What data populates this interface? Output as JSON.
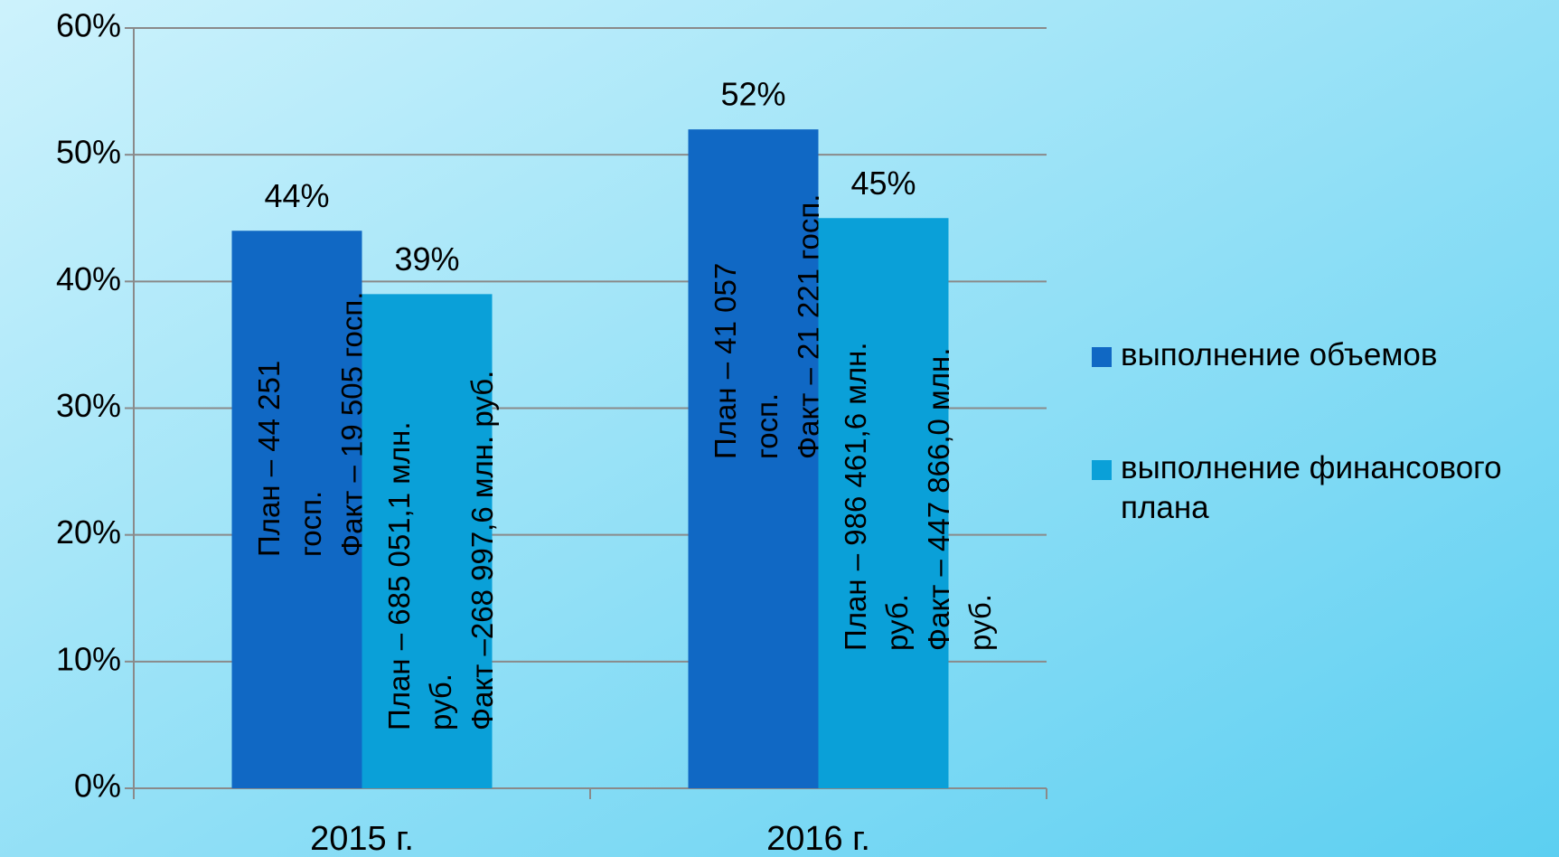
{
  "chart_data": {
    "type": "bar",
    "categories": [
      "2015 г.",
      "2016 г."
    ],
    "series": [
      {
        "name": "выполнение объемов",
        "color": "#1068c4",
        "values": [
          44,
          52
        ],
        "value_labels": [
          "44%",
          "52%"
        ],
        "notes": [
          [
            "План – 44 251",
            "госп.",
            "Факт – 19 505 госп."
          ],
          [
            "План – 41 057",
            "госп.",
            "Факт – 21 221 госп."
          ]
        ]
      },
      {
        "name": "выполнение финансового плана",
        "color": "#0aa0d8",
        "values": [
          39,
          45
        ],
        "value_labels": [
          "39%",
          "45%"
        ],
        "notes": [
          [
            "План – 685 051,1 млн.",
            "руб.",
            "Факт –268 997,6 млн. руб."
          ],
          [
            "План – 986 461,6 млн.",
            "руб.",
            "Факт – 447 866,0 млн.",
            "руб."
          ]
        ]
      }
    ],
    "ylim": [
      0,
      60
    ],
    "yticks": [
      {
        "value": 0,
        "label": "0%"
      },
      {
        "value": 10,
        "label": "10%"
      },
      {
        "value": 20,
        "label": "20%"
      },
      {
        "value": 30,
        "label": "30%"
      },
      {
        "value": 40,
        "label": "40%"
      },
      {
        "value": 50,
        "label": "50%"
      },
      {
        "value": 60,
        "label": "60%"
      }
    ],
    "grid": true,
    "legend": "right"
  }
}
